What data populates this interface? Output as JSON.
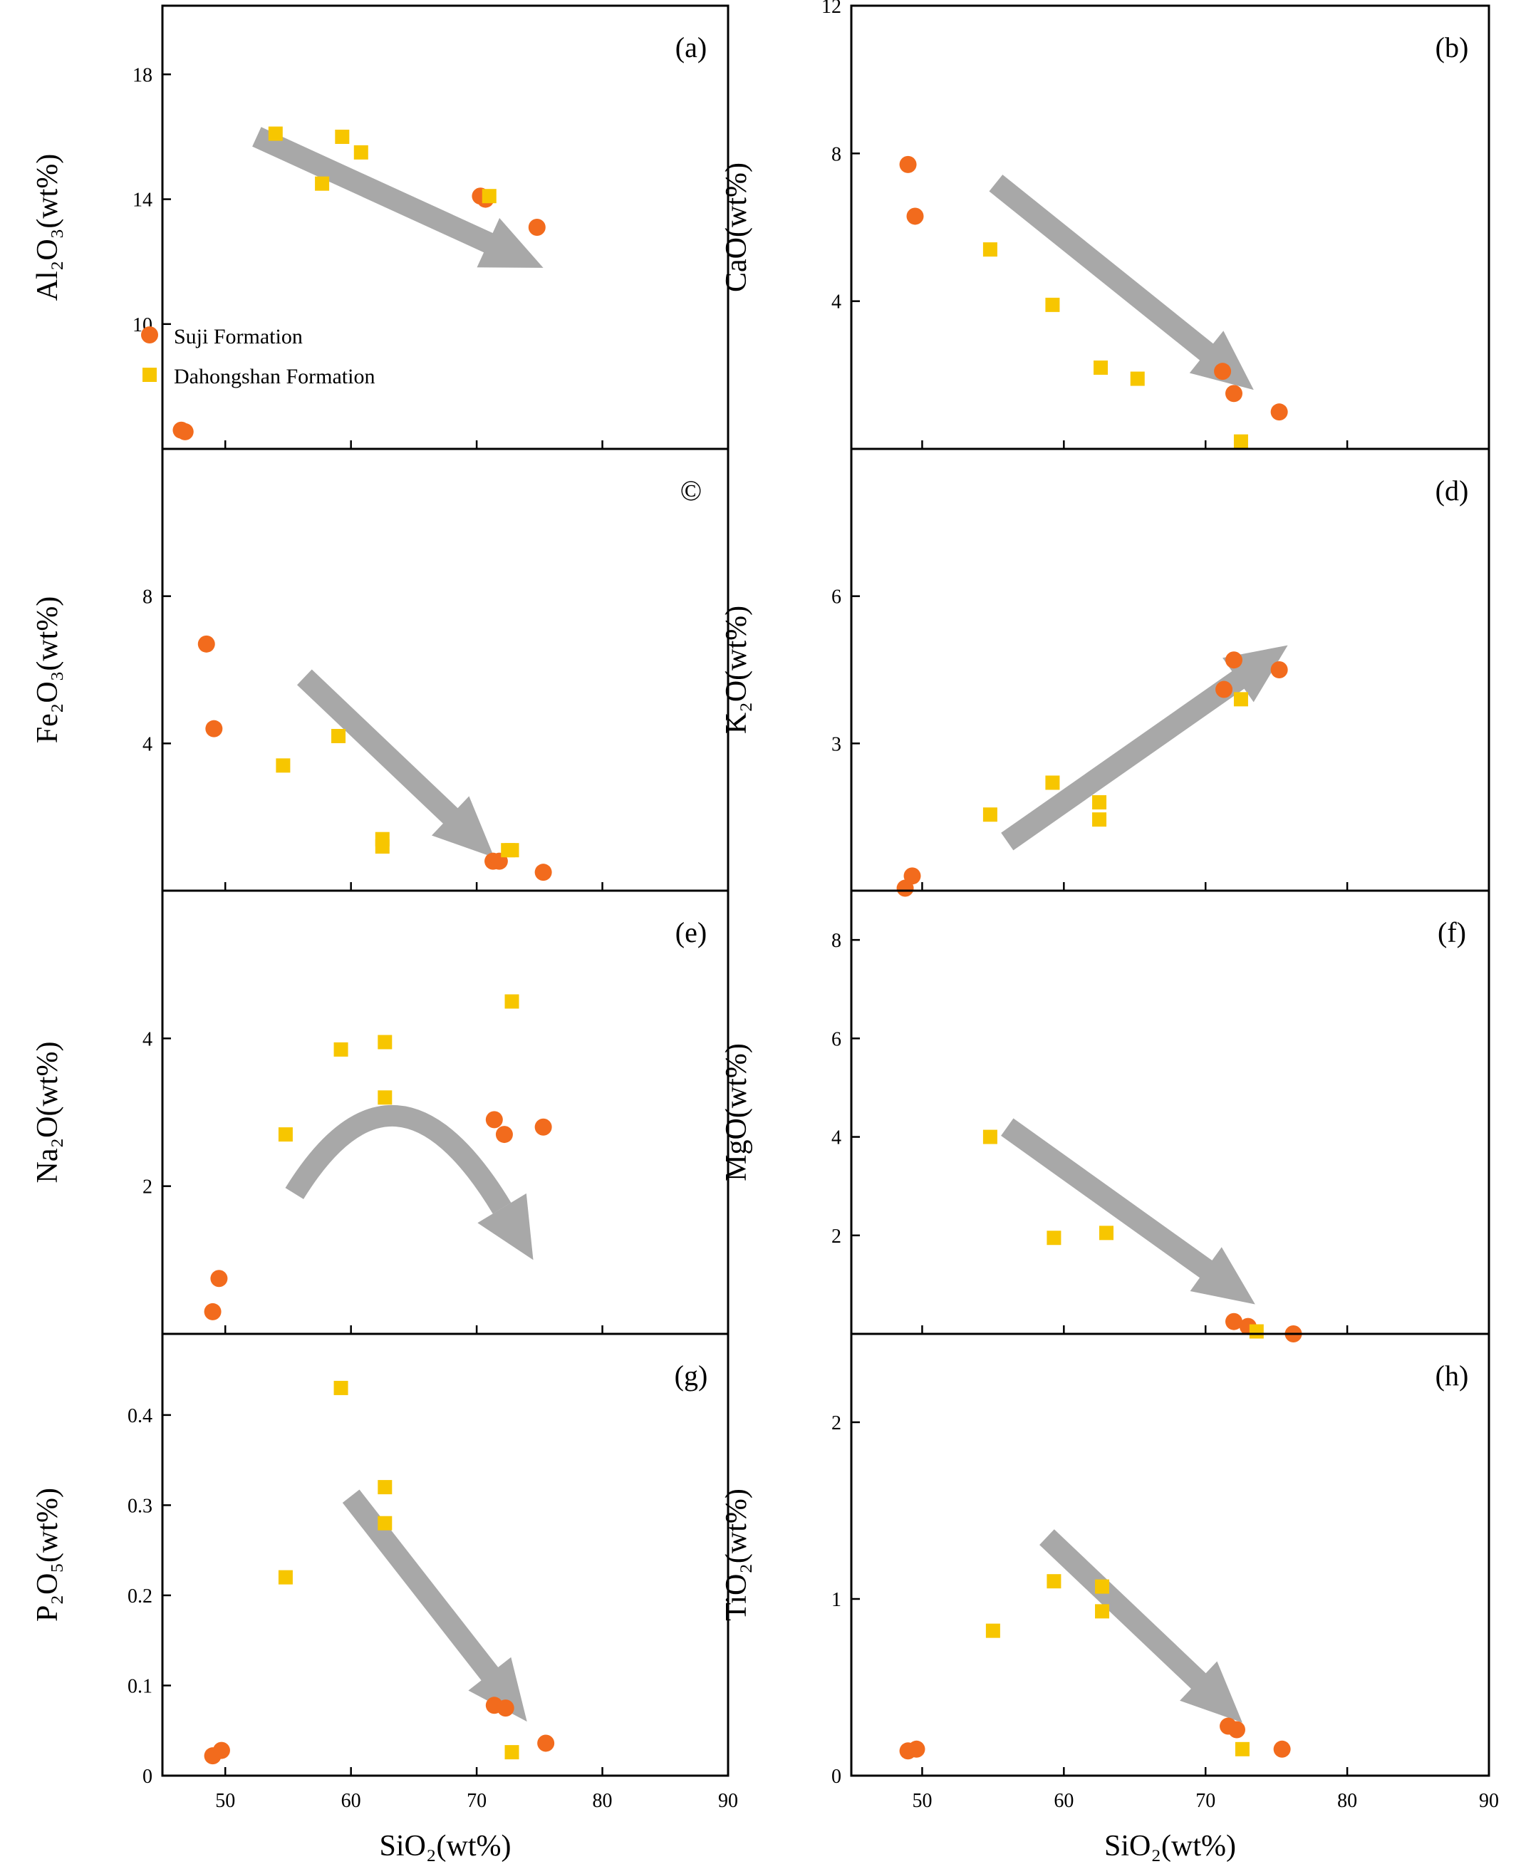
{
  "figure": {
    "legend": {
      "position": "inside-left of panel (a)",
      "entries": [
        {
          "name": "Suji Formation",
          "marker": "circle",
          "color": "#f26b1d"
        },
        {
          "name": "Dahongshan Formation",
          "marker": "square",
          "color": "#f7c600"
        }
      ]
    },
    "colors": {
      "suji": "#f26b1d",
      "dahongshan": "#f7c600",
      "arrow": "#a8a8a8",
      "axis": "#000000"
    }
  },
  "chart_data": [
    {
      "id": "a",
      "type": "scatter",
      "panel_label": "(a)",
      "ylabel": "Al₂O₃(wt%)",
      "xlabel": "",
      "xlim": [
        45,
        90
      ],
      "ylim": [
        6,
        20.2
      ],
      "yticks": [
        10,
        14,
        18
      ],
      "xticks": [],
      "series": [
        {
          "name": "Suji Formation",
          "points": [
            [
              46.5,
              6.6
            ],
            [
              46.8,
              6.55
            ],
            [
              70.3,
              14.1
            ],
            [
              70.7,
              14.0
            ],
            [
              74.8,
              13.1
            ]
          ]
        },
        {
          "name": "Dahongshan Formation",
          "points": [
            [
              54.0,
              16.1
            ],
            [
              59.3,
              16.0
            ],
            [
              60.8,
              15.5
            ],
            [
              57.7,
              14.5
            ],
            [
              71.0,
              14.1
            ]
          ]
        }
      ],
      "trend": {
        "shape": "straight",
        "from": [
          52.5,
          16.0
        ],
        "to": [
          75.3,
          11.8
        ]
      }
    },
    {
      "id": "b",
      "type": "scatter",
      "panel_label": "(b)",
      "ylabel": "CaO(wt%)",
      "xlabel": "",
      "xlim": [
        45,
        90
      ],
      "ylim": [
        0,
        12
      ],
      "yticks": [
        4,
        8,
        12
      ],
      "xticks": [],
      "series": [
        {
          "name": "Suji Formation",
          "points": [
            [
              49.0,
              7.7
            ],
            [
              49.5,
              6.3
            ],
            [
              71.2,
              2.1
            ],
            [
              72.0,
              1.5
            ],
            [
              75.2,
              1.0
            ]
          ]
        },
        {
          "name": "Dahongshan Formation",
          "points": [
            [
              54.8,
              5.4
            ],
            [
              59.2,
              3.9
            ],
            [
              62.6,
              2.2
            ],
            [
              65.2,
              1.9
            ],
            [
              72.5,
              0.2
            ]
          ]
        }
      ],
      "trend": {
        "shape": "straight",
        "from": [
          55.2,
          7.2
        ],
        "to": [
          73.4,
          1.6
        ]
      }
    },
    {
      "id": "c",
      "type": "scatter",
      "panel_label": "©",
      "ylabel": "Fe₂O₃(wt%)",
      "xlabel": "",
      "xlim": [
        45,
        90
      ],
      "ylim": [
        0,
        12
      ],
      "yticks": [
        4,
        8
      ],
      "xticks": [],
      "series": [
        {
          "name": "Suji Formation",
          "points": [
            [
              48.5,
              6.7
            ],
            [
              49.1,
              4.4
            ],
            [
              71.3,
              0.8
            ],
            [
              71.8,
              0.8
            ],
            [
              75.3,
              0.5
            ]
          ]
        },
        {
          "name": "Dahongshan Formation",
          "points": [
            [
              54.6,
              3.4
            ],
            [
              59.0,
              4.2
            ],
            [
              62.5,
              1.4
            ],
            [
              62.5,
              1.2
            ],
            [
              72.5,
              1.1
            ],
            [
              72.8,
              1.1
            ]
          ]
        }
      ],
      "trend": {
        "shape": "straight",
        "from": [
          56.3,
          5.8
        ],
        "to": [
          71.4,
          0.9
        ]
      }
    },
    {
      "id": "d",
      "type": "scatter",
      "panel_label": "(d)",
      "ylabel": "K₂O(wt%)",
      "xlabel": "",
      "xlim": [
        45,
        90
      ],
      "ylim": [
        0,
        9
      ],
      "yticks": [
        3,
        6
      ],
      "xticks": [],
      "series": [
        {
          "name": "Suji Formation",
          "points": [
            [
              48.8,
              0.05
            ],
            [
              49.3,
              0.3
            ],
            [
              71.3,
              4.1
            ],
            [
              72.0,
              4.7
            ],
            [
              75.2,
              4.5
            ]
          ]
        },
        {
          "name": "Dahongshan Formation",
          "points": [
            [
              54.8,
              1.55
            ],
            [
              59.2,
              2.2
            ],
            [
              62.5,
              1.8
            ],
            [
              62.5,
              1.45
            ],
            [
              72.5,
              3.9
            ]
          ]
        }
      ],
      "trend": {
        "shape": "straight",
        "from": [
          56.0,
          1.0
        ],
        "to": [
          75.8,
          5.0
        ]
      }
    },
    {
      "id": "e",
      "type": "scatter",
      "panel_label": "(e)",
      "ylabel": "Na₂O(wt%)",
      "xlabel": "",
      "xlim": [
        45,
        90
      ],
      "ylim": [
        0,
        6
      ],
      "yticks": [
        2,
        4
      ],
      "xticks": [],
      "series": [
        {
          "name": "Suji Formation",
          "points": [
            [
              49.0,
              0.3
            ],
            [
              49.5,
              0.75
            ],
            [
              71.4,
              2.9
            ],
            [
              72.2,
              2.7
            ],
            [
              75.3,
              2.8
            ]
          ]
        },
        {
          "name": "Dahongshan Formation",
          "points": [
            [
              54.8,
              2.7
            ],
            [
              59.2,
              3.85
            ],
            [
              62.7,
              3.95
            ],
            [
              62.7,
              3.2
            ],
            [
              72.8,
              4.5
            ]
          ]
        }
      ],
      "trend": {
        "shape": "curved",
        "from": [
          55.5,
          1.9
        ],
        "control": [
          63.5,
          4.1
        ],
        "to": [
          74.5,
          1.0
        ]
      }
    },
    {
      "id": "f",
      "type": "scatter",
      "panel_label": "(f)",
      "ylabel": "MgO(wt%)",
      "xlabel": "",
      "xlim": [
        45,
        90
      ],
      "ylim": [
        0,
        9
      ],
      "yticks": [
        2,
        4,
        6,
        8
      ],
      "xticks": [],
      "series": [
        {
          "name": "Suji Formation",
          "points": [
            [
              72.0,
              0.25
            ],
            [
              73.0,
              0.15
            ],
            [
              76.2,
              0.0
            ]
          ]
        },
        {
          "name": "Dahongshan Formation",
          "points": [
            [
              54.8,
              4.0
            ],
            [
              59.3,
              1.95
            ],
            [
              63.0,
              2.05
            ],
            [
              73.6,
              0.05
            ]
          ]
        }
      ],
      "trend": {
        "shape": "straight",
        "from": [
          56.0,
          4.2
        ],
        "to": [
          73.5,
          0.6
        ]
      }
    },
    {
      "id": "g",
      "type": "scatter",
      "panel_label": "(g)",
      "ylabel": "P₂O₅(wt%)",
      "xlabel": "SiO₂(wt%)",
      "xlim": [
        45,
        90
      ],
      "ylim": [
        0,
        0.49
      ],
      "yticks": [
        0,
        0.1,
        0.2,
        0.3,
        0.4
      ],
      "xticks": [
        50,
        60,
        70,
        80,
        90
      ],
      "series": [
        {
          "name": "Suji Formation",
          "points": [
            [
              49.0,
              0.022
            ],
            [
              49.7,
              0.028
            ],
            [
              71.4,
              0.078
            ],
            [
              72.3,
              0.075
            ],
            [
              75.5,
              0.036
            ]
          ]
        },
        {
          "name": "Dahongshan Formation",
          "points": [
            [
              54.8,
              0.22
            ],
            [
              59.2,
              0.43
            ],
            [
              62.7,
              0.32
            ],
            [
              62.7,
              0.28
            ],
            [
              72.8,
              0.026
            ]
          ]
        }
      ],
      "trend": {
        "shape": "straight",
        "from": [
          60.0,
          0.31
        ],
        "to": [
          74.0,
          0.06
        ]
      }
    },
    {
      "id": "h",
      "type": "scatter",
      "panel_label": "(h)",
      "ylabel": "TiO₂(wt%)",
      "xlabel": "SiO₂(wt%)",
      "xlim": [
        45,
        90
      ],
      "ylim": [
        0,
        2.5
      ],
      "yticks": [
        0,
        1,
        2
      ],
      "xticks": [
        50,
        60,
        70,
        80,
        90
      ],
      "series": [
        {
          "name": "Suji Formation",
          "points": [
            [
              49.0,
              0.14
            ],
            [
              49.6,
              0.15
            ],
            [
              71.6,
              0.28
            ],
            [
              72.2,
              0.26
            ],
            [
              75.4,
              0.15
            ]
          ]
        },
        {
          "name": "Dahongshan Formation",
          "points": [
            [
              55.0,
              0.82
            ],
            [
              59.3,
              1.1
            ],
            [
              62.7,
              1.07
            ],
            [
              62.7,
              0.93
            ],
            [
              72.6,
              0.15
            ]
          ]
        }
      ],
      "trend": {
        "shape": "straight",
        "from": [
          58.8,
          1.35
        ],
        "to": [
          72.6,
          0.3
        ]
      }
    }
  ]
}
